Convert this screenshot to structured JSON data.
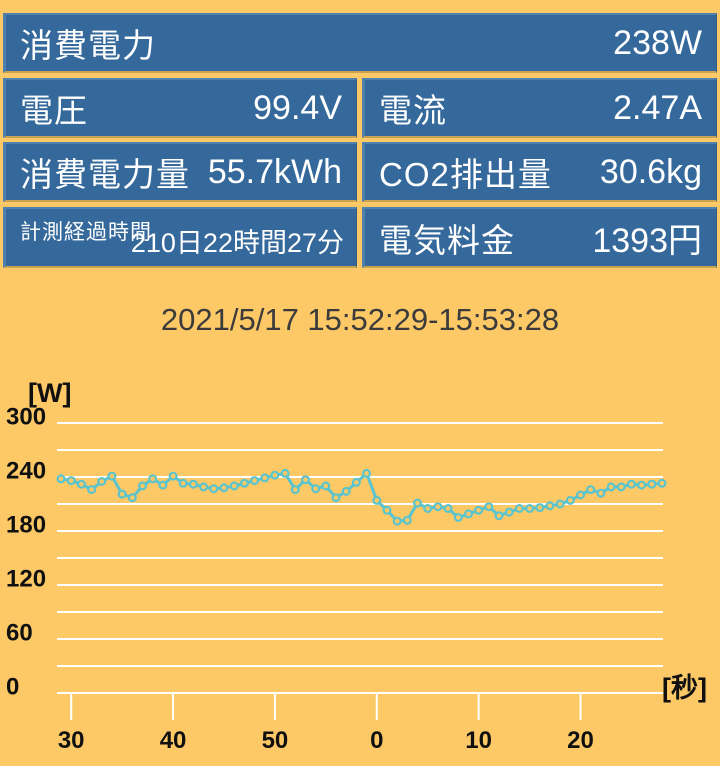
{
  "colors": {
    "background": "#fdc967",
    "panel_blue": "#36699b",
    "panel_bevel_light": "#5080ae",
    "panel_bevel_dark": "#c9a252",
    "text_white": "#ffffff",
    "axis_text": "#101010",
    "grid_white": "#ffffff",
    "series_teal": "#5ac4ce",
    "date_text": "#3b3b3b"
  },
  "panels": {
    "power": {
      "label": "消費電力",
      "value": "238W"
    },
    "voltage": {
      "label": "電圧",
      "value": "99.4V"
    },
    "current": {
      "label": "電流",
      "value": "2.47A"
    },
    "energy": {
      "label": "消費電力量",
      "value": "55.7kWh"
    },
    "co2": {
      "label": "CO2排出量",
      "value": "30.6kg"
    },
    "elapsed": {
      "label": "計測経過時間",
      "value": "210日22時間27分"
    },
    "cost": {
      "label": "電気料金",
      "value": "1393円"
    }
  },
  "period": {
    "text": "2021/5/17 15:52:29-15:53:28"
  },
  "chart_data": {
    "type": "line",
    "title": "2021/5/17 15:52:29-15:53:28",
    "ylabel": "[W]",
    "xlabel": "[秒]",
    "ylim": [
      0,
      300
    ],
    "grid_interval": 30,
    "labeled_y_ticks": [
      300,
      240,
      180,
      120,
      60,
      0
    ],
    "x_tick_seconds": [
      30,
      40,
      50,
      0,
      10,
      20
    ],
    "x_start_second": 29,
    "grid": true,
    "legend_position": "none",
    "x_seconds": [
      29,
      30,
      31,
      32,
      33,
      34,
      35,
      36,
      37,
      38,
      39,
      40,
      41,
      42,
      43,
      44,
      45,
      46,
      47,
      48,
      49,
      50,
      51,
      52,
      53,
      54,
      55,
      56,
      57,
      58,
      59,
      0,
      1,
      2,
      3,
      4,
      5,
      6,
      7,
      8,
      9,
      10,
      11,
      12,
      13,
      14,
      15,
      16,
      17,
      18,
      19,
      20,
      21,
      22,
      23,
      24,
      25,
      26,
      27,
      28
    ],
    "series": [
      {
        "name": "消費電力",
        "color": "#5ac4ce",
        "values": [
          238,
          236,
          232,
          226,
          235,
          241,
          221,
          217,
          230,
          238,
          231,
          241,
          233,
          232,
          229,
          227,
          228,
          230,
          233,
          236,
          239,
          242,
          244,
          226,
          237,
          227,
          230,
          217,
          224,
          234,
          244,
          214,
          203,
          191,
          192,
          211,
          205,
          207,
          205,
          195,
          199,
          203,
          207,
          197,
          201,
          205,
          205,
          206,
          208,
          210,
          214,
          220,
          226,
          222,
          229,
          229,
          232,
          231,
          232,
          233
        ]
      }
    ]
  }
}
